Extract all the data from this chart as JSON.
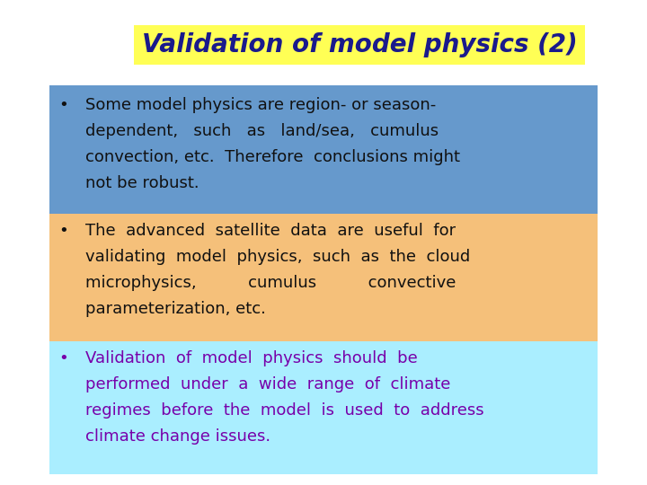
{
  "title": "Validation of model physics (2)",
  "title_color": "#1a1a8c",
  "title_bg_color": "#ffff55",
  "bg_color": "#ffffff",
  "bullet1_lines": [
    "Some model physics are region- or season-",
    "dependent,   such   as   land/sea,   cumulus",
    "convection, etc.  Therefore  conclusions might",
    "not be robust."
  ],
  "bullet1_color": "#111111",
  "bullet1_bg": "#6699cc",
  "bullet2_lines": [
    "The  advanced  satellite  data  are  useful  for",
    "validating  model  physics,  such  as  the  cloud",
    "microphysics,          cumulus          convective",
    "parameterization, etc."
  ],
  "bullet2_color": "#111111",
  "bullet2_bg": "#f5c07a",
  "bullet3_lines": [
    "Validation  of  model  physics  should  be",
    "performed  under  a  wide  range  of  climate",
    "regimes  before  the  model  is  used  to  address",
    "climate change issues."
  ],
  "bullet3_color": "#7700aa",
  "bullet3_bg": "#aaeeff",
  "bullet_symbol": "•"
}
